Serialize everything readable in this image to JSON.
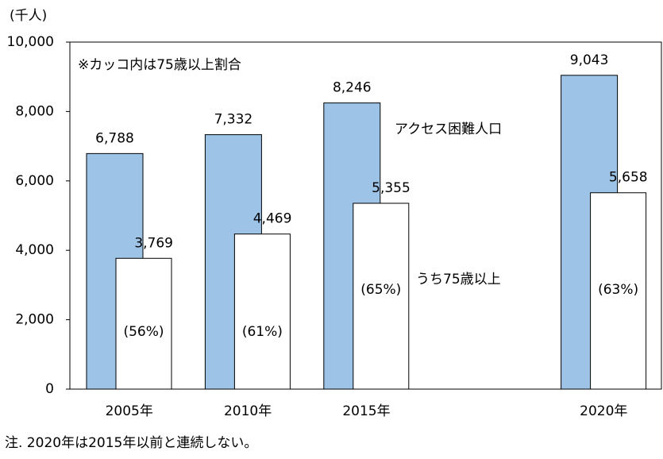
{
  "chart_data": {
    "type": "bar",
    "unit_label": "(千人)",
    "annotation": "※カッコ内は75歳以上割合",
    "footnote": "注. 2020年は2015年以前と連続しない。",
    "categories": [
      "2005年",
      "2010年",
      "2015年",
      null,
      "2020年"
    ],
    "series": [
      {
        "name": "アクセス困難人口",
        "color": "#9dc3e6",
        "values": [
          6788,
          7332,
          8246,
          null,
          9043
        ],
        "value_labels": [
          "6,788",
          "7,332",
          "8,246",
          null,
          "9,043"
        ]
      },
      {
        "name": "うち75歳以上",
        "color": "#ffffff",
        "values": [
          3769,
          4469,
          5355,
          null,
          5658
        ],
        "value_labels": [
          "3,769",
          "4,469",
          "5,355",
          null,
          "5,658"
        ],
        "share_labels": [
          "(56%)",
          "(61%)",
          "(65%)",
          null,
          "(63%)"
        ]
      }
    ],
    "ylim": [
      0,
      10000
    ],
    "yticks": [
      0,
      {
        "value": 2000,
        "label": "2,000"
      },
      {
        "value": 4000,
        "label": "4,000"
      },
      {
        "value": 6000,
        "label": "6,000"
      },
      {
        "value": 8000,
        "label": "8,000"
      },
      {
        "value": 10000,
        "label": "10,000"
      }
    ],
    "grid": false
  }
}
